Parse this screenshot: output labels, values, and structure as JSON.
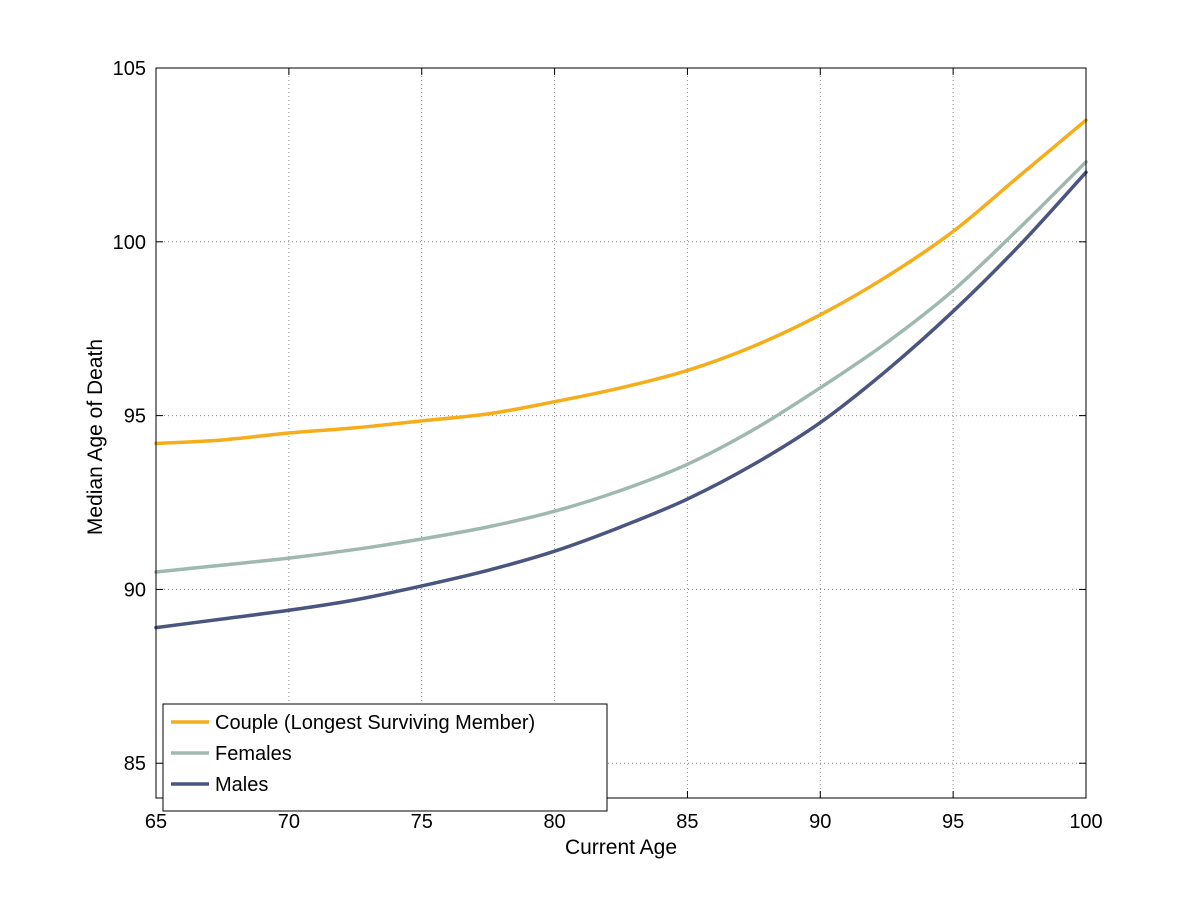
{
  "chart_data": {
    "type": "line",
    "xlabel": "Current Age",
    "ylabel": "Median Age of Death",
    "xlim": [
      65,
      100
    ],
    "ylim": [
      84,
      105
    ],
    "xticks": [
      65,
      70,
      75,
      80,
      85,
      90,
      95,
      100
    ],
    "yticks": [
      85,
      90,
      95,
      100,
      105
    ],
    "grid": true,
    "legend_position": "bottom-left",
    "x": [
      65,
      67.5,
      70,
      72.5,
      75,
      77.5,
      80,
      82.5,
      85,
      87.5,
      90,
      92.5,
      95,
      97.5,
      100
    ],
    "series": [
      {
        "name": "Couple (Longest Surviving Member)",
        "color": "#f5ad1a",
        "values": [
          94.2,
          94.3,
          94.5,
          94.65,
          94.85,
          95.05,
          95.4,
          95.8,
          96.3,
          97.0,
          97.9,
          99.0,
          100.3,
          101.9,
          103.5
        ]
      },
      {
        "name": "Females",
        "color": "#9fb8b0",
        "values": [
          90.5,
          90.7,
          90.9,
          91.15,
          91.45,
          91.8,
          92.25,
          92.85,
          93.6,
          94.6,
          95.8,
          97.1,
          98.6,
          100.4,
          102.3
        ]
      },
      {
        "name": "Males",
        "color": "#4a5580",
        "values": [
          88.9,
          89.15,
          89.4,
          89.7,
          90.1,
          90.55,
          91.1,
          91.8,
          92.6,
          93.6,
          94.8,
          96.3,
          98.0,
          99.9,
          102.0
        ]
      }
    ]
  }
}
